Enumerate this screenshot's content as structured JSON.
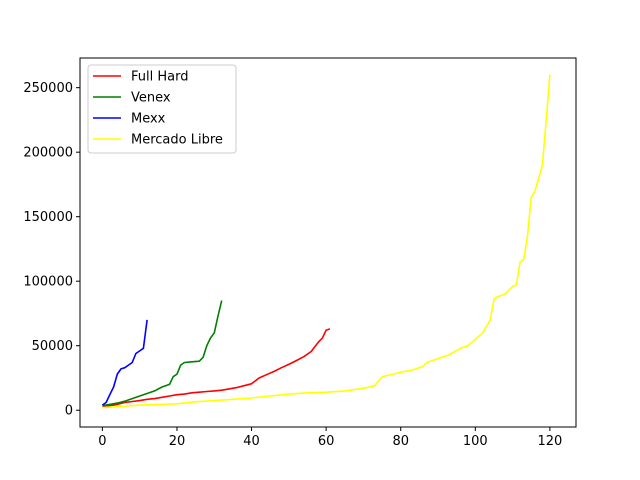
{
  "chart_data": {
    "type": "line",
    "title": "",
    "xlabel": "",
    "ylabel": "",
    "xlim": [
      -6,
      127
    ],
    "ylim": [
      -13000,
      273000
    ],
    "xticks": [
      0,
      20,
      40,
      60,
      80,
      100,
      120
    ],
    "yticks": [
      0,
      50000,
      100000,
      150000,
      200000,
      250000
    ],
    "grid": false,
    "legend_position": "top-left",
    "series": [
      {
        "name": "Full Hard",
        "color": "#ff0000",
        "x": [
          0,
          2,
          4,
          6,
          8,
          10,
          12,
          14,
          16,
          18,
          20,
          22,
          24,
          26,
          28,
          30,
          32,
          34,
          36,
          38,
          40,
          42,
          44,
          46,
          48,
          50,
          52,
          54,
          56,
          58,
          59,
          60,
          61
        ],
        "y": [
          2500,
          3500,
          4500,
          6000,
          6800,
          7500,
          8500,
          9000,
          10000,
          11000,
          12000,
          12500,
          13500,
          14000,
          14500,
          15000,
          15500,
          16500,
          17500,
          19000,
          20500,
          25000,
          27500,
          30000,
          33000,
          35500,
          38500,
          41500,
          45500,
          53000,
          56000,
          62000,
          63000
        ]
      },
      {
        "name": "Venex",
        "color": "#008000",
        "x": [
          0,
          2,
          4,
          6,
          8,
          10,
          12,
          14,
          16,
          18,
          19,
          20,
          21,
          22,
          24,
          26,
          27,
          28,
          29,
          30,
          31,
          32
        ],
        "y": [
          3500,
          4500,
          5500,
          7000,
          9000,
          11000,
          13000,
          15000,
          18000,
          20000,
          26000,
          28000,
          35000,
          37000,
          37500,
          38000,
          41000,
          50000,
          56000,
          60000,
          73000,
          85000
        ]
      },
      {
        "name": "Mexx",
        "color": "#0000ff",
        "x": [
          0,
          1,
          2,
          3,
          4,
          5,
          6,
          7,
          8,
          9,
          10,
          11,
          12
        ],
        "y": [
          4000,
          6000,
          12000,
          18000,
          28000,
          32000,
          33000,
          35000,
          37000,
          44000,
          46000,
          48000,
          70000
        ]
      },
      {
        "name": "Mercado Libre",
        "color": "#ffff00",
        "x": [
          0,
          5,
          10,
          15,
          20,
          25,
          30,
          35,
          40,
          45,
          50,
          55,
          60,
          65,
          70,
          73,
          75,
          78,
          80,
          83,
          86,
          87,
          90,
          93,
          96,
          98,
          100,
          102,
          104,
          105,
          106,
          108,
          110,
          111,
          112,
          113,
          114,
          115,
          116,
          117,
          118,
          119,
          120
        ],
        "y": [
          2000,
          3000,
          4000,
          4500,
          5000,
          6500,
          7500,
          8500,
          9500,
          11000,
          12500,
          13500,
          14000,
          15000,
          17000,
          19000,
          26000,
          28000,
          29500,
          31000,
          34000,
          37000,
          40000,
          43000,
          48000,
          50000,
          55000,
          60000,
          70000,
          86000,
          88000,
          90000,
          96000,
          97000,
          115000,
          117000,
          135000,
          165000,
          170000,
          180000,
          190000,
          225000,
          260000
        ]
      }
    ]
  }
}
